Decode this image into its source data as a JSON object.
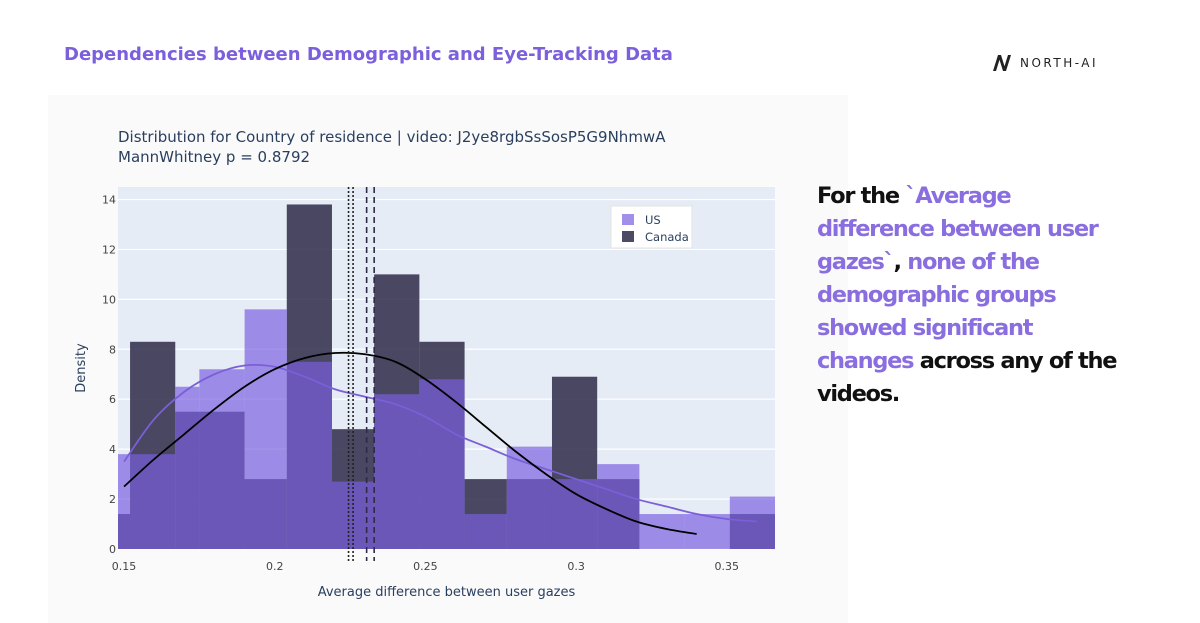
{
  "slide": {
    "title": "Dependencies between Demographic and Eye-Tracking Data",
    "logo_text": "NORTH-AI",
    "logo_icon": "north-ai-logo-icon"
  },
  "callout": {
    "parts": [
      {
        "text": "For the ",
        "highlight": false
      },
      {
        "text": "`Average difference between user gazes`",
        "highlight": true
      },
      {
        "text": ", ",
        "highlight": false
      },
      {
        "text": "none of the demographic groups showed significant changes",
        "highlight": true
      },
      {
        "text": " across any of the videos.",
        "highlight": false
      }
    ]
  },
  "colors": {
    "accent": "#7b5fdc",
    "us_bar": "#7b5fe0",
    "canada_bar": "#2e2a48",
    "us_curve": "#7a5fd8",
    "canada_curve": "#000000",
    "plot_bg": "#e6ecf5"
  },
  "chart_data": {
    "type": "bar",
    "title": "Distribution for Country of residence | video: J2ye8rgbSsSosP5G9NhmwA",
    "subtitle": "MannWhitney p = 0.8792",
    "xlabel": "Average difference between user gazes",
    "ylabel": "Density",
    "xlim": [
      0.148,
      0.366
    ],
    "ylim": [
      0,
      14.5
    ],
    "xticks": [
      0.15,
      0.2,
      0.25,
      0.3,
      0.35
    ],
    "yticks": [
      0,
      2,
      4,
      6,
      8,
      10,
      12,
      14
    ],
    "grid": true,
    "legend_position": "top-right",
    "barmode": "overlay",
    "series": [
      {
        "name": "US",
        "bins": [
          [
            0.145,
            0.148,
            2.1
          ],
          [
            0.148,
            0.152,
            3.8
          ],
          [
            0.152,
            0.167,
            3.8
          ],
          [
            0.167,
            0.175,
            6.5
          ],
          [
            0.175,
            0.19,
            7.2
          ],
          [
            0.19,
            0.204,
            9.6
          ],
          [
            0.204,
            0.219,
            7.5
          ],
          [
            0.219,
            0.233,
            2.7
          ],
          [
            0.233,
            0.248,
            6.2
          ],
          [
            0.248,
            0.263,
            6.8
          ],
          [
            0.263,
            0.277,
            1.4
          ],
          [
            0.277,
            0.292,
            4.1
          ],
          [
            0.292,
            0.307,
            2.8
          ],
          [
            0.307,
            0.321,
            3.4
          ],
          [
            0.321,
            0.336,
            1.4
          ],
          [
            0.336,
            0.351,
            1.4
          ],
          [
            0.351,
            0.366,
            2.1
          ]
        ]
      },
      {
        "name": "Canada",
        "bins": [
          [
            0.145,
            0.148,
            1.4
          ],
          [
            0.148,
            0.152,
            1.4
          ],
          [
            0.152,
            0.167,
            8.3
          ],
          [
            0.167,
            0.175,
            5.5
          ],
          [
            0.175,
            0.19,
            5.5
          ],
          [
            0.19,
            0.204,
            2.8
          ],
          [
            0.204,
            0.219,
            13.8
          ],
          [
            0.219,
            0.233,
            4.8
          ],
          [
            0.233,
            0.248,
            11.0
          ],
          [
            0.248,
            0.263,
            8.3
          ],
          [
            0.263,
            0.277,
            2.8
          ],
          [
            0.277,
            0.292,
            2.8
          ],
          [
            0.292,
            0.307,
            6.9
          ],
          [
            0.307,
            0.321,
            2.8
          ],
          [
            0.321,
            0.336,
            0
          ],
          [
            0.336,
            0.351,
            0
          ],
          [
            0.351,
            0.366,
            1.4
          ]
        ]
      }
    ],
    "curves": [
      {
        "name": "US",
        "x": [
          0.15,
          0.16,
          0.17,
          0.18,
          0.19,
          0.2,
          0.21,
          0.22,
          0.23,
          0.24,
          0.25,
          0.26,
          0.27,
          0.28,
          0.29,
          0.3,
          0.31,
          0.32,
          0.33,
          0.34,
          0.35,
          0.36
        ],
        "y": [
          3.5,
          5.2,
          6.3,
          7.0,
          7.35,
          7.3,
          6.9,
          6.4,
          6.1,
          5.8,
          5.3,
          4.6,
          4.1,
          3.6,
          3.2,
          2.8,
          2.4,
          2.0,
          1.7,
          1.4,
          1.2,
          1.1
        ]
      },
      {
        "name": "Canada",
        "x": [
          0.15,
          0.16,
          0.17,
          0.18,
          0.19,
          0.2,
          0.21,
          0.22,
          0.23,
          0.24,
          0.25,
          0.26,
          0.27,
          0.28,
          0.29,
          0.3,
          0.31,
          0.32,
          0.33,
          0.34
        ],
        "y": [
          2.5,
          3.6,
          4.6,
          5.6,
          6.5,
          7.2,
          7.65,
          7.85,
          7.8,
          7.5,
          6.8,
          5.9,
          4.9,
          3.9,
          3.0,
          2.2,
          1.6,
          1.1,
          0.8,
          0.6
        ]
      }
    ],
    "vlines": [
      {
        "name": "US",
        "x": 0.2245,
        "style": "dotted"
      },
      {
        "name": "US",
        "x": 0.226,
        "style": "dotted"
      },
      {
        "name": "Canada",
        "x": 0.2305,
        "style": "dashed"
      },
      {
        "name": "Canada",
        "x": 0.233,
        "style": "dashed"
      }
    ]
  }
}
